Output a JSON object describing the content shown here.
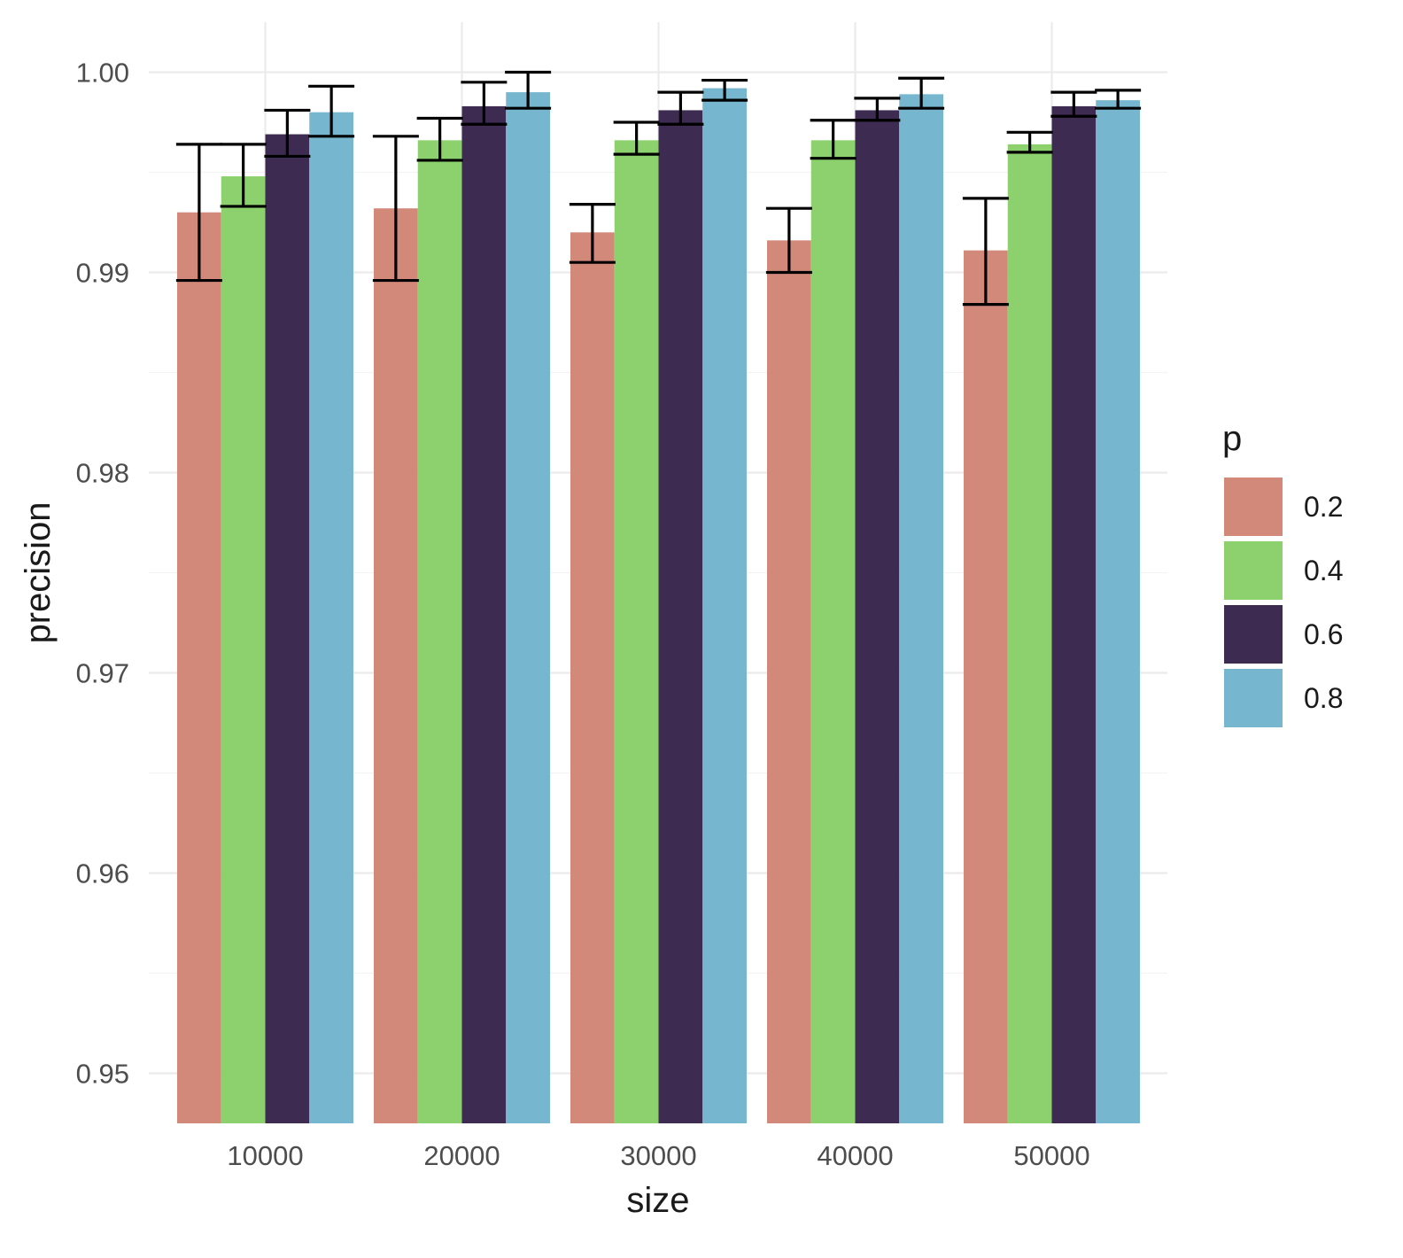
{
  "chart_data": {
    "type": "bar",
    "title": "",
    "xlabel": "size",
    "ylabel": "precision",
    "categories": [
      "10000",
      "20000",
      "30000",
      "40000",
      "50000"
    ],
    "ylim": [
      0.9475,
      1.0025
    ],
    "yticks": [
      0.95,
      0.96,
      0.97,
      0.98,
      0.99,
      1.0
    ],
    "ytick_labels": [
      "0.95",
      "0.96",
      "0.97",
      "0.98",
      "0.99",
      "1.00"
    ],
    "grid": true,
    "legend": {
      "title": "p",
      "position": "right"
    },
    "series": [
      {
        "name": "0.2",
        "color": "#D2897A",
        "values": [
          0.993,
          0.9932,
          0.992,
          0.9916,
          0.9911
        ],
        "error_low": [
          0.9896,
          0.9896,
          0.9905,
          0.99,
          0.9884
        ],
        "error_high": [
          0.9964,
          0.9968,
          0.9934,
          0.9932,
          0.9937
        ]
      },
      {
        "name": "0.4",
        "color": "#8DD16E",
        "values": [
          0.9948,
          0.9966,
          0.9966,
          0.9966,
          0.9964
        ],
        "error_low": [
          0.9933,
          0.9956,
          0.9959,
          0.9957,
          0.996
        ],
        "error_high": [
          0.9964,
          0.9977,
          0.9975,
          0.9976,
          0.997
        ]
      },
      {
        "name": "0.6",
        "color": "#3D2B51",
        "values": [
          0.9969,
          0.9983,
          0.9981,
          0.9981,
          0.9983
        ],
        "error_low": [
          0.9958,
          0.9974,
          0.9974,
          0.9976,
          0.9978
        ],
        "error_high": [
          0.9981,
          0.9995,
          0.999,
          0.9987,
          0.999
        ]
      },
      {
        "name": "0.8",
        "color": "#76B6CE",
        "values": [
          0.998,
          0.999,
          0.9992,
          0.9989,
          0.9986
        ],
        "error_low": [
          0.9968,
          0.9982,
          0.9986,
          0.9982,
          0.9982
        ],
        "error_high": [
          0.9993,
          1.0,
          0.9996,
          0.9997,
          0.9991
        ]
      }
    ]
  }
}
